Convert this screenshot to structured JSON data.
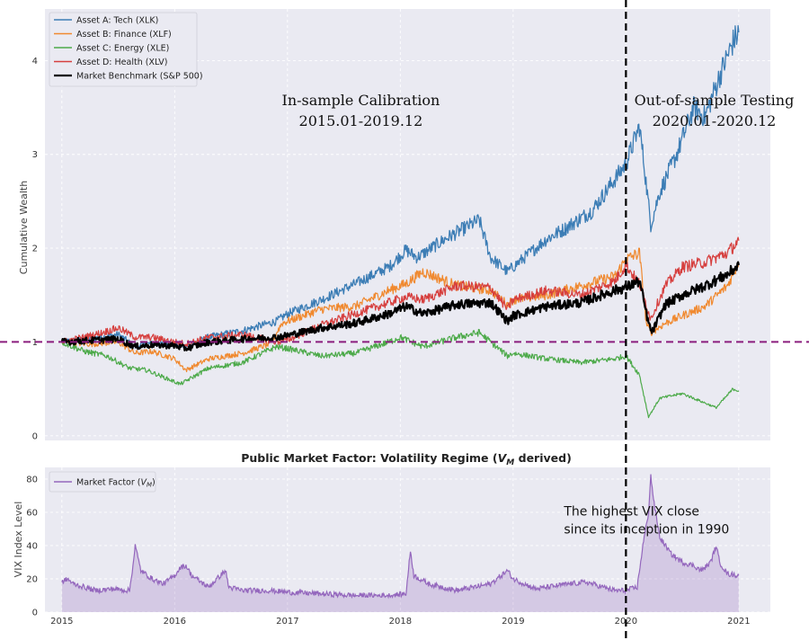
{
  "chart_data": [
    {
      "type": "line",
      "title": "",
      "xlabel": "",
      "ylabel": "Cumulative Wealth",
      "xlim": [
        2014.85,
        2021.28
      ],
      "ylim": [
        -0.05,
        4.55
      ],
      "yticks": [
        0,
        1,
        2,
        3,
        4
      ],
      "grid": true,
      "legend_position": "top-left",
      "reference_lines": [
        {
          "orientation": "horizontal",
          "value": 1.0,
          "color": "#8B1E7E",
          "style": "dashed"
        },
        {
          "orientation": "vertical",
          "value": 2020.0,
          "color": "#000000",
          "style": "dashed"
        }
      ],
      "annotations": [
        {
          "lines": [
            "In-sample Calibration",
            "2015.01-2019.12"
          ],
          "x": 2017.65,
          "y": 3.6
        },
        {
          "lines": [
            "Out-of-sample Testing",
            "2020.01-2020.12"
          ],
          "x": 2020.75,
          "y": 3.6
        }
      ],
      "series": [
        {
          "name": "Asset A: Tech (XLK)",
          "color": "#3C7DB5",
          "width": 1.3,
          "x": [
            2015.0,
            2015.25,
            2015.5,
            2015.65,
            2015.75,
            2016.0,
            2016.1,
            2016.3,
            2016.6,
            2016.9,
            2017.0,
            2017.3,
            2017.6,
            2017.9,
            2018.05,
            2018.15,
            2018.4,
            2018.7,
            2018.8,
            2018.95,
            2019.0,
            2019.3,
            2019.45,
            2019.7,
            2020.0,
            2020.12,
            2020.16,
            2020.22,
            2020.3,
            2020.45,
            2020.6,
            2020.7,
            2020.85,
            2020.95,
            2021.0
          ],
          "values": [
            1.0,
            1.03,
            1.08,
            0.95,
            0.98,
            0.98,
            0.95,
            1.05,
            1.12,
            1.22,
            1.3,
            1.45,
            1.62,
            1.8,
            1.98,
            1.9,
            2.1,
            2.3,
            1.9,
            1.75,
            1.8,
            2.1,
            2.2,
            2.4,
            2.9,
            3.3,
            2.9,
            2.25,
            2.6,
            3.0,
            3.5,
            3.4,
            3.9,
            4.2,
            4.3
          ]
        },
        {
          "name": "Asset B: Finance (XLF)",
          "color": "#F0892F",
          "width": 1.2,
          "x": [
            2015.0,
            2015.25,
            2015.5,
            2015.65,
            2015.8,
            2016.0,
            2016.1,
            2016.3,
            2016.6,
            2016.85,
            2016.95,
            2017.3,
            2017.6,
            2017.9,
            2018.05,
            2018.2,
            2018.5,
            2018.8,
            2018.95,
            2019.0,
            2019.3,
            2019.6,
            2019.9,
            2020.0,
            2020.12,
            2020.18,
            2020.22,
            2020.35,
            2020.5,
            2020.7,
            2020.9,
            2021.0
          ],
          "values": [
            1.0,
            0.98,
            1.0,
            0.88,
            0.9,
            0.82,
            0.7,
            0.82,
            0.88,
            0.98,
            1.2,
            1.35,
            1.38,
            1.55,
            1.62,
            1.75,
            1.6,
            1.55,
            1.4,
            1.45,
            1.5,
            1.6,
            1.7,
            1.88,
            1.95,
            1.2,
            1.1,
            1.2,
            1.28,
            1.38,
            1.6,
            1.85
          ]
        },
        {
          "name": "Asset C: Energy (XLE)",
          "color": "#4DAA4A",
          "width": 1.2,
          "x": [
            2015.0,
            2015.2,
            2015.4,
            2015.6,
            2015.75,
            2015.95,
            2016.05,
            2016.3,
            2016.6,
            2016.9,
            2017.0,
            2017.3,
            2017.6,
            2017.9,
            2018.0,
            2018.2,
            2018.5,
            2018.7,
            2018.95,
            2019.0,
            2019.3,
            2019.6,
            2019.9,
            2020.0,
            2020.12,
            2020.2,
            2020.3,
            2020.5,
            2020.7,
            2020.8,
            2020.95,
            2021.0
          ],
          "values": [
            1.0,
            0.9,
            0.85,
            0.72,
            0.7,
            0.6,
            0.55,
            0.72,
            0.78,
            0.95,
            0.93,
            0.85,
            0.88,
            1.0,
            1.05,
            0.95,
            1.05,
            1.1,
            0.85,
            0.88,
            0.82,
            0.78,
            0.82,
            0.85,
            0.65,
            0.2,
            0.4,
            0.45,
            0.35,
            0.3,
            0.5,
            0.48
          ]
        },
        {
          "name": "Asset D: Health (XLV)",
          "color": "#D63F3E",
          "width": 1.2,
          "x": [
            2015.0,
            2015.3,
            2015.5,
            2015.65,
            2015.8,
            2016.0,
            2016.1,
            2016.3,
            2016.6,
            2016.9,
            2017.0,
            2017.3,
            2017.6,
            2017.9,
            2018.05,
            2018.2,
            2018.5,
            2018.8,
            2018.95,
            2019.0,
            2019.3,
            2019.6,
            2019.9,
            2020.0,
            2020.12,
            2020.22,
            2020.35,
            2020.5,
            2020.7,
            2020.9,
            2021.0
          ],
          "values": [
            1.0,
            1.08,
            1.15,
            1.05,
            1.05,
            1.0,
            0.98,
            1.05,
            1.08,
            1.0,
            1.02,
            1.18,
            1.3,
            1.42,
            1.48,
            1.45,
            1.6,
            1.58,
            1.35,
            1.45,
            1.55,
            1.5,
            1.65,
            1.82,
            1.62,
            1.25,
            1.6,
            1.8,
            1.85,
            1.95,
            2.08
          ]
        },
        {
          "name": "Market Benchmark (S&P 500)",
          "color": "#000000",
          "width": 2.2,
          "x": [
            2015.0,
            2015.3,
            2015.5,
            2015.65,
            2015.8,
            2016.0,
            2016.1,
            2016.3,
            2016.6,
            2016.9,
            2017.0,
            2017.3,
            2017.6,
            2017.9,
            2018.05,
            2018.2,
            2018.5,
            2018.8,
            2018.95,
            2019.0,
            2019.3,
            2019.6,
            2019.9,
            2020.0,
            2020.12,
            2020.2,
            2020.23,
            2020.35,
            2020.5,
            2020.7,
            2020.9,
            2021.0
          ],
          "values": [
            1.0,
            1.02,
            1.03,
            0.95,
            0.97,
            0.96,
            0.93,
            1.0,
            1.03,
            1.05,
            1.07,
            1.15,
            1.2,
            1.3,
            1.38,
            1.3,
            1.4,
            1.42,
            1.22,
            1.28,
            1.38,
            1.42,
            1.55,
            1.58,
            1.65,
            1.2,
            1.1,
            1.4,
            1.5,
            1.6,
            1.72,
            1.82
          ]
        }
      ]
    },
    {
      "type": "area",
      "title": "Public Market Factor: Volatility Regime (V_M derived)",
      "xlabel": "",
      "ylabel": "VIX Index Level",
      "xlim": [
        2014.85,
        2021.28
      ],
      "ylim": [
        0,
        87
      ],
      "yticks": [
        0,
        20,
        40,
        60,
        80
      ],
      "xticks": [
        "2015",
        "2016",
        "2017",
        "2018",
        "2019",
        "2020",
        "2021"
      ],
      "grid": true,
      "legend_position": "top-left",
      "annotations": [
        {
          "lines": [
            "The highest VIX close",
            "since its inception in 1990"
          ],
          "x": 2019.45,
          "y": 58
        }
      ],
      "series": [
        {
          "name": "Market Factor (V_M)",
          "color": "#9467BD",
          "x": [
            2015.0,
            2015.05,
            2015.1,
            2015.2,
            2015.3,
            2015.45,
            2015.6,
            2015.63,
            2015.65,
            2015.7,
            2015.8,
            2015.9,
            2016.0,
            2016.05,
            2016.1,
            2016.15,
            2016.3,
            2016.45,
            2016.48,
            2016.6,
            2016.85,
            2017.0,
            2017.3,
            2017.6,
            2017.9,
            2018.05,
            2018.09,
            2018.12,
            2018.25,
            2018.5,
            2018.8,
            2018.95,
            2019.0,
            2019.2,
            2019.5,
            2019.65,
            2019.9,
            2020.0,
            2020.1,
            2020.15,
            2020.2,
            2020.22,
            2020.25,
            2020.3,
            2020.4,
            2020.5,
            2020.6,
            2020.67,
            2020.75,
            2020.8,
            2020.83,
            2020.9,
            2021.0
          ],
          "values": [
            18,
            20,
            17,
            15,
            13,
            14,
            13,
            28,
            40,
            25,
            20,
            17,
            22,
            27,
            28,
            22,
            15,
            25,
            15,
            13,
            13,
            12,
            11,
            10,
            10,
            11,
            37,
            22,
            17,
            13,
            17,
            25,
            20,
            14,
            17,
            18,
            13,
            13,
            15,
            40,
            60,
            82,
            65,
            45,
            35,
            30,
            28,
            25,
            30,
            40,
            30,
            23,
            22
          ]
        }
      ]
    }
  ],
  "vm_title": {
    "prefix": "Public Market Factor: Volatility Regime (",
    "symbol": "V",
    "sub": "M",
    "suffix": " derived)"
  },
  "vm_legend": {
    "prefix": "Market Factor (",
    "symbol": "V",
    "sub": "M",
    "suffix": ")"
  }
}
